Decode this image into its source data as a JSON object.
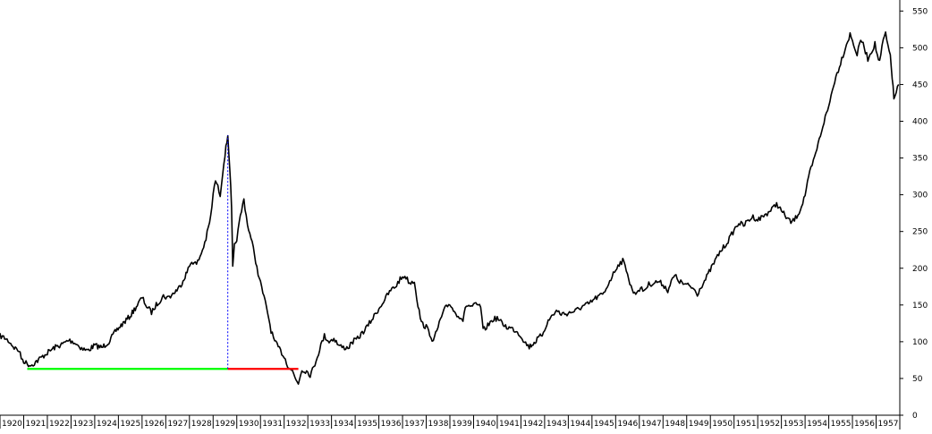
{
  "chart_data": {
    "type": "line",
    "title": "",
    "xlabel": "",
    "ylabel": "",
    "x_ticks": [
      "1920",
      "1921",
      "1922",
      "1923",
      "1924",
      "1925",
      "1926",
      "1927",
      "1928",
      "1929",
      "1930",
      "1931",
      "1932",
      "1933",
      "1934",
      "1935",
      "1936",
      "1937",
      "1938",
      "1939",
      "1940",
      "1941",
      "1942",
      "1943",
      "1944",
      "1945",
      "1946",
      "1947",
      "1948",
      "1949",
      "1950",
      "1951",
      "1952",
      "1953",
      "1954",
      "1955",
      "1956",
      "1957"
    ],
    "y_ticks": [
      0,
      50,
      100,
      150,
      200,
      250,
      300,
      350,
      400,
      450,
      500,
      550
    ],
    "xlim": [
      1920.0,
      1958.0
    ],
    "ylim": [
      0,
      565
    ],
    "y_axis_position": "right",
    "grid": false,
    "series": [
      {
        "color": "#000000",
        "points": [
          [
            1920.0,
            108
          ],
          [
            1920.2,
            105
          ],
          [
            1920.4,
            100
          ],
          [
            1920.6,
            92
          ],
          [
            1920.8,
            88
          ],
          [
            1920.9,
            78
          ],
          [
            1921.0,
            74
          ],
          [
            1921.15,
            70
          ],
          [
            1921.3,
            68
          ],
          [
            1921.5,
            72
          ],
          [
            1921.8,
            80
          ],
          [
            1922.0,
            85
          ],
          [
            1922.3,
            92
          ],
          [
            1922.6,
            96
          ],
          [
            1922.9,
            102
          ],
          [
            1923.1,
            100
          ],
          [
            1923.3,
            95
          ],
          [
            1923.5,
            90
          ],
          [
            1923.7,
            88
          ],
          [
            1924.0,
            95
          ],
          [
            1924.3,
            92
          ],
          [
            1924.6,
            100
          ],
          [
            1924.9,
            115
          ],
          [
            1925.2,
            125
          ],
          [
            1925.5,
            135
          ],
          [
            1925.8,
            150
          ],
          [
            1926.0,
            160
          ],
          [
            1926.2,
            148
          ],
          [
            1926.4,
            140
          ],
          [
            1926.6,
            150
          ],
          [
            1926.9,
            162
          ],
          [
            1927.1,
            160
          ],
          [
            1927.3,
            165
          ],
          [
            1927.6,
            175
          ],
          [
            1927.9,
            195
          ],
          [
            1928.1,
            210
          ],
          [
            1928.3,
            205
          ],
          [
            1928.5,
            220
          ],
          [
            1928.7,
            240
          ],
          [
            1928.9,
            270
          ],
          [
            1929.0,
            300
          ],
          [
            1929.1,
            320
          ],
          [
            1929.2,
            310
          ],
          [
            1929.3,
            300
          ],
          [
            1929.4,
            330
          ],
          [
            1929.5,
            355
          ],
          [
            1929.62,
            381
          ],
          [
            1929.7,
            340
          ],
          [
            1929.78,
            280
          ],
          [
            1929.83,
            200
          ],
          [
            1929.9,
            230
          ],
          [
            1930.0,
            240
          ],
          [
            1930.15,
            270
          ],
          [
            1930.3,
            294
          ],
          [
            1930.45,
            260
          ],
          [
            1930.6,
            240
          ],
          [
            1930.75,
            220
          ],
          [
            1930.85,
            200
          ],
          [
            1931.0,
            180
          ],
          [
            1931.15,
            160
          ],
          [
            1931.3,
            140
          ],
          [
            1931.45,
            115
          ],
          [
            1931.6,
            100
          ],
          [
            1931.8,
            90
          ],
          [
            1932.0,
            80
          ],
          [
            1932.15,
            68
          ],
          [
            1932.35,
            60
          ],
          [
            1932.5,
            48
          ],
          [
            1932.6,
            44
          ],
          [
            1932.75,
            62
          ],
          [
            1932.95,
            60
          ],
          [
            1933.1,
            55
          ],
          [
            1933.25,
            65
          ],
          [
            1933.4,
            80
          ],
          [
            1933.55,
            95
          ],
          [
            1933.7,
            108
          ],
          [
            1933.9,
            100
          ],
          [
            1934.1,
            105
          ],
          [
            1934.3,
            95
          ],
          [
            1934.5,
            92
          ],
          [
            1934.7,
            92
          ],
          [
            1934.9,
            100
          ],
          [
            1935.1,
            104
          ],
          [
            1935.3,
            112
          ],
          [
            1935.5,
            120
          ],
          [
            1935.7,
            130
          ],
          [
            1935.9,
            140
          ],
          [
            1936.1,
            150
          ],
          [
            1936.3,
            160
          ],
          [
            1936.5,
            170
          ],
          [
            1936.7,
            175
          ],
          [
            1936.9,
            185
          ],
          [
            1937.1,
            190
          ],
          [
            1937.3,
            180
          ],
          [
            1937.5,
            183
          ],
          [
            1937.65,
            150
          ],
          [
            1937.8,
            125
          ],
          [
            1938.0,
            120
          ],
          [
            1938.2,
            108
          ],
          [
            1938.3,
            100
          ],
          [
            1938.4,
            110
          ],
          [
            1938.6,
            130
          ],
          [
            1938.8,
            145
          ],
          [
            1939.0,
            152
          ],
          [
            1939.2,
            140
          ],
          [
            1939.4,
            135
          ],
          [
            1939.55,
            130
          ],
          [
            1939.7,
            150
          ],
          [
            1939.9,
            148
          ],
          [
            1940.1,
            150
          ],
          [
            1940.3,
            148
          ],
          [
            1940.4,
            115
          ],
          [
            1940.6,
            122
          ],
          [
            1940.8,
            130
          ],
          [
            1941.0,
            132
          ],
          [
            1941.2,
            125
          ],
          [
            1941.4,
            120
          ],
          [
            1941.6,
            118
          ],
          [
            1941.8,
            115
          ],
          [
            1942.0,
            108
          ],
          [
            1942.2,
            98
          ],
          [
            1942.35,
            93
          ],
          [
            1942.6,
            100
          ],
          [
            1942.9,
            110
          ],
          [
            1943.1,
            125
          ],
          [
            1943.3,
            135
          ],
          [
            1943.5,
            142
          ],
          [
            1943.7,
            138
          ],
          [
            1943.9,
            138
          ],
          [
            1944.1,
            140
          ],
          [
            1944.3,
            142
          ],
          [
            1944.6,
            148
          ],
          [
            1944.9,
            152
          ],
          [
            1945.1,
            158
          ],
          [
            1945.3,
            162
          ],
          [
            1945.5,
            165
          ],
          [
            1945.7,
            180
          ],
          [
            1945.9,
            192
          ],
          [
            1946.1,
            205
          ],
          [
            1946.3,
            210
          ],
          [
            1946.5,
            195
          ],
          [
            1946.6,
            178
          ],
          [
            1946.8,
            165
          ],
          [
            1947.0,
            172
          ],
          [
            1947.2,
            170
          ],
          [
            1947.4,
            178
          ],
          [
            1947.6,
            180
          ],
          [
            1947.8,
            182
          ],
          [
            1948.0,
            178
          ],
          [
            1948.2,
            170
          ],
          [
            1948.4,
            185
          ],
          [
            1948.5,
            190
          ],
          [
            1948.7,
            182
          ],
          [
            1948.9,
            178
          ],
          [
            1949.1,
            176
          ],
          [
            1949.3,
            172
          ],
          [
            1949.45,
            165
          ],
          [
            1949.6,
            175
          ],
          [
            1949.8,
            185
          ],
          [
            1950.0,
            198
          ],
          [
            1950.2,
            210
          ],
          [
            1950.4,
            222
          ],
          [
            1950.6,
            230
          ],
          [
            1950.8,
            240
          ],
          [
            1951.0,
            252
          ],
          [
            1951.2,
            262
          ],
          [
            1951.4,
            258
          ],
          [
            1951.6,
            265
          ],
          [
            1951.8,
            270
          ],
          [
            1952.0,
            266
          ],
          [
            1952.2,
            270
          ],
          [
            1952.4,
            275
          ],
          [
            1952.6,
            280
          ],
          [
            1952.8,
            288
          ],
          [
            1953.0,
            278
          ],
          [
            1953.2,
            270
          ],
          [
            1953.4,
            262
          ],
          [
            1953.6,
            268
          ],
          [
            1953.8,
            280
          ],
          [
            1954.0,
            300
          ],
          [
            1954.2,
            330
          ],
          [
            1954.4,
            350
          ],
          [
            1954.6,
            375
          ],
          [
            1954.8,
            400
          ],
          [
            1955.0,
            420
          ],
          [
            1955.2,
            450
          ],
          [
            1955.4,
            470
          ],
          [
            1955.6,
            490
          ],
          [
            1955.75,
            505
          ],
          [
            1955.9,
            518
          ],
          [
            1956.05,
            505
          ],
          [
            1956.2,
            490
          ],
          [
            1956.35,
            512
          ],
          [
            1956.5,
            500
          ],
          [
            1956.65,
            485
          ],
          [
            1956.8,
            495
          ],
          [
            1956.95,
            505
          ],
          [
            1957.05,
            490
          ],
          [
            1957.15,
            480
          ],
          [
            1957.3,
            510
          ],
          [
            1957.4,
            520
          ],
          [
            1957.5,
            500
          ],
          [
            1957.6,
            490
          ],
          [
            1957.68,
            460
          ],
          [
            1957.75,
            430
          ],
          [
            1957.85,
            440
          ],
          [
            1957.95,
            450
          ]
        ]
      }
    ],
    "annotations": [
      {
        "type": "hline",
        "y": 63,
        "x_from": 1921.15,
        "x_to": 1929.62,
        "color": "#00ff00"
      },
      {
        "type": "hline",
        "y": 63,
        "x_from": 1929.62,
        "x_to": 1932.6,
        "color": "#ff0000"
      },
      {
        "type": "vline",
        "x": 1929.62,
        "y_from": 63,
        "y_to": 381,
        "color": "#0000ff",
        "dashed": true
      }
    ]
  }
}
